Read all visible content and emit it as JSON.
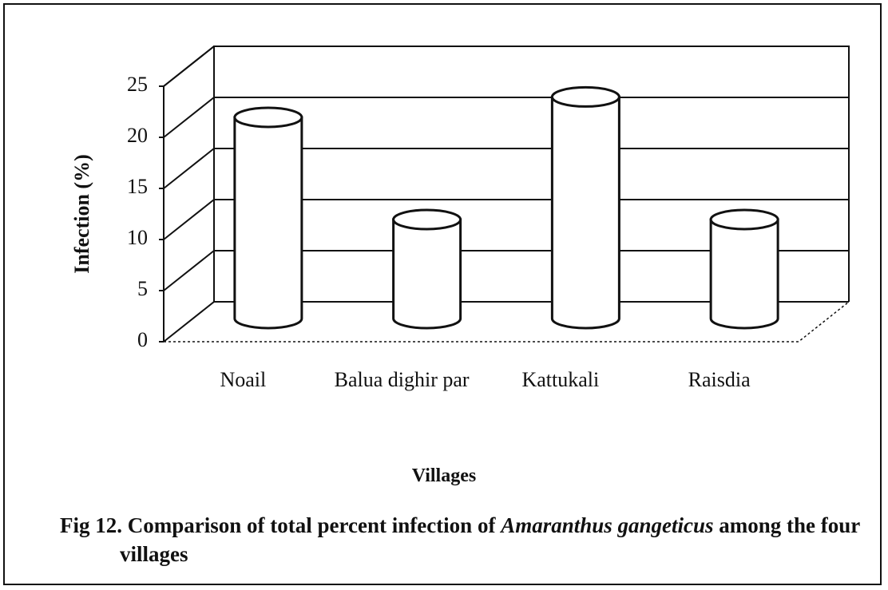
{
  "chart_data": {
    "type": "bar3d",
    "categories": [
      "Noail",
      "Balua dighir par",
      "Kattukali",
      "Raisdia"
    ],
    "values": [
      20,
      10,
      22,
      10
    ],
    "color": "#ffffff",
    "ylim": [
      0,
      25
    ],
    "yticks": [
      0,
      5,
      10,
      15,
      20,
      25
    ],
    "grid": true,
    "xlabel": "Villages",
    "ylabel": "Infection (%)",
    "caption": [
      "Fig 12. Comparison of total percent infection of ",
      "Amaranthus gangeticus",
      " among the four villages"
    ]
  }
}
